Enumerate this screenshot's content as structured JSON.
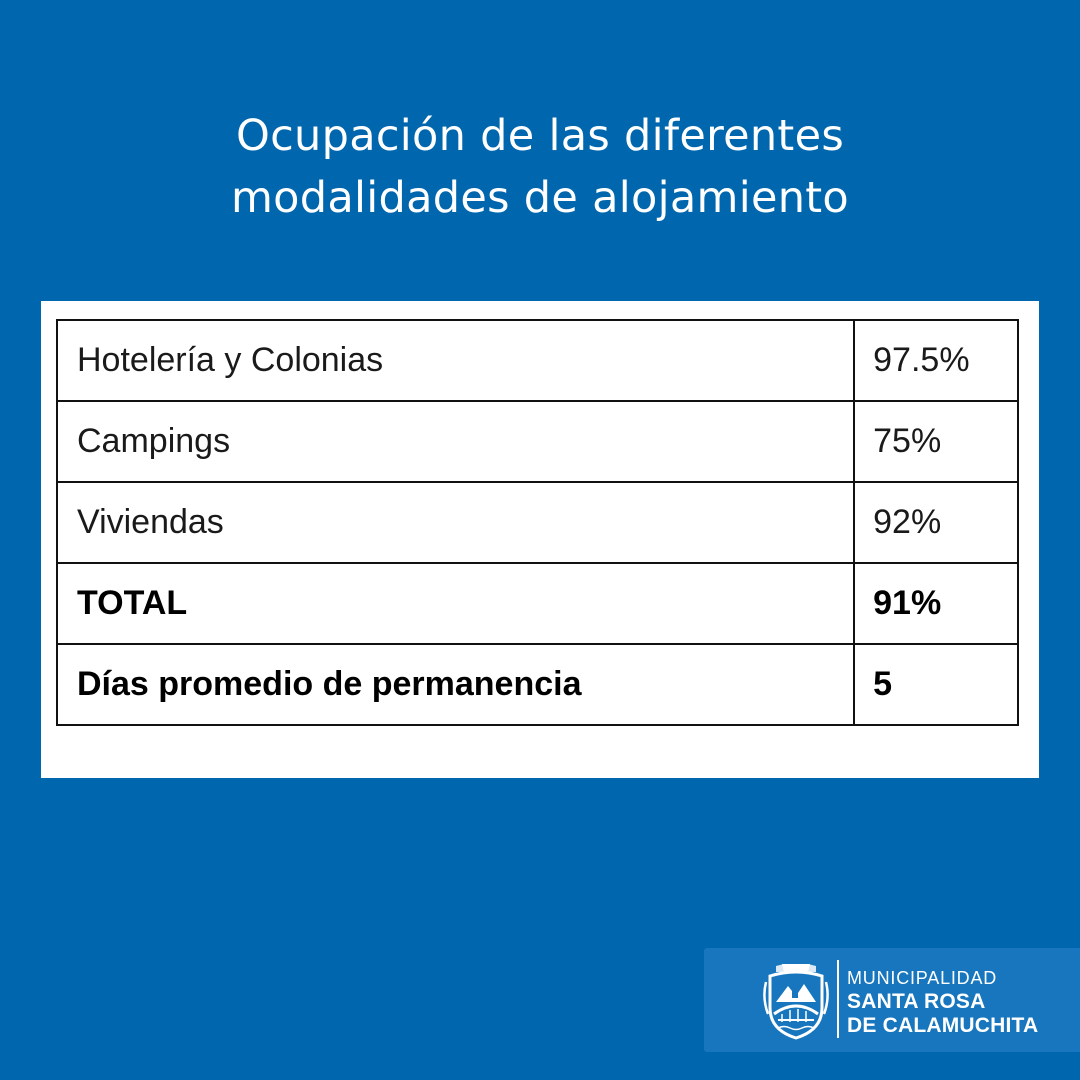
{
  "title": {
    "line1": "Ocupación de las diferentes",
    "line2": "modalidades de alojamiento"
  },
  "table": {
    "rows": [
      {
        "label": "Hotelería y Colonias",
        "value": "97.5%",
        "bold": false
      },
      {
        "label": "Campings",
        "value": "75%",
        "bold": false
      },
      {
        "label": "Viviendas",
        "value": "92%",
        "bold": false
      },
      {
        "label": "TOTAL",
        "value": "91%",
        "bold": true
      },
      {
        "label": "Días promedio de permanencia",
        "value": "5",
        "bold": true
      }
    ]
  },
  "brand": {
    "line1": "MUNICIPALIDAD",
    "line2": "SANTA ROSA",
    "line3": "DE CALAMUCHITA",
    "icon": "municipal-crest-icon"
  },
  "colors": {
    "background": "#0066ad",
    "card": "#ffffff",
    "brand_box": "#1776bd"
  }
}
